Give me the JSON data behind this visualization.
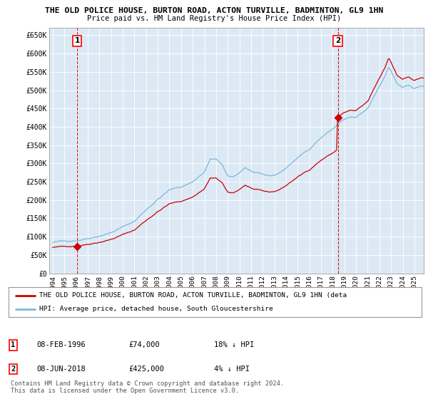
{
  "title1": "THE OLD POLICE HOUSE, BURTON ROAD, ACTON TURVILLE, BADMINTON, GL9 1HN",
  "title2": "Price paid vs. HM Land Registry's House Price Index (HPI)",
  "ylabel_ticks": [
    "£0",
    "£50K",
    "£100K",
    "£150K",
    "£200K",
    "£250K",
    "£300K",
    "£350K",
    "£400K",
    "£450K",
    "£500K",
    "£550K",
    "£600K",
    "£650K"
  ],
  "ytick_values": [
    0,
    50000,
    100000,
    150000,
    200000,
    250000,
    300000,
    350000,
    400000,
    450000,
    500000,
    550000,
    600000,
    650000
  ],
  "ylim": [
    0,
    670000
  ],
  "xlim_start": 1993.7,
  "xlim_end": 2025.8,
  "xtick_years": [
    1994,
    1995,
    1996,
    1997,
    1998,
    1999,
    2000,
    2001,
    2002,
    2003,
    2004,
    2005,
    2006,
    2007,
    2008,
    2009,
    2010,
    2011,
    2012,
    2013,
    2014,
    2015,
    2016,
    2017,
    2018,
    2019,
    2020,
    2021,
    2022,
    2023,
    2024,
    2025
  ],
  "sale1_x": 1996.1,
  "sale1_y": 74000,
  "sale1_label": "1",
  "sale2_x": 2018.44,
  "sale2_y": 425000,
  "sale2_label": "2",
  "hpi_color": "#7ab8d9",
  "price_color": "#cc0000",
  "chart_bg": "#dce9f5",
  "grid_color": "#ffffff",
  "background_color": "#ffffff",
  "legend_line1": "THE OLD POLICE HOUSE, BURTON ROAD, ACTON TURVILLE, BADMINTON, GL9 1HN (deta",
  "legend_line2": "HPI: Average price, detached house, South Gloucestershire",
  "note1_label": "1",
  "note1_date": "08-FEB-1996",
  "note1_price": "£74,000",
  "note1_hpi": "18% ↓ HPI",
  "note2_label": "2",
  "note2_date": "08-JUN-2018",
  "note2_price": "£425,000",
  "note2_hpi": "4% ↓ HPI",
  "footer": "Contains HM Land Registry data © Crown copyright and database right 2024.\nThis data is licensed under the Open Government Licence v3.0."
}
